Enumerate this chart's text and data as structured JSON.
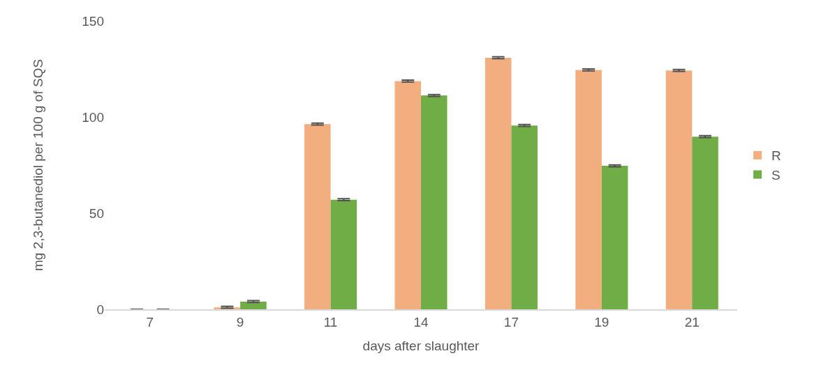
{
  "chart_data": {
    "type": "bar",
    "xlabel": "days after slaughter",
    "ylabel": "mg 2,3-butanediol per 100 g of SQS",
    "categories": [
      "7",
      "9",
      "11",
      "14",
      "17",
      "19",
      "21"
    ],
    "series": [
      {
        "name": "R",
        "color": "#f2ae7f",
        "values": [
          0,
          1,
          96.3,
          118.7,
          130.8,
          124.5,
          124.2
        ],
        "errors": [
          null,
          0.5,
          0.5,
          0.5,
          0.5,
          0.5,
          0.5
        ]
      },
      {
        "name": "S",
        "color": "#70ad47",
        "values": [
          0,
          4,
          57,
          111.2,
          95.6,
          74.6,
          89.8
        ],
        "errors": [
          null,
          0.5,
          0.5,
          0.5,
          0.5,
          0.5,
          0.5
        ]
      }
    ],
    "ylim": [
      0,
      150
    ],
    "yticks": [
      0,
      50,
      100,
      150
    ],
    "grid": false,
    "legend": "right"
  }
}
